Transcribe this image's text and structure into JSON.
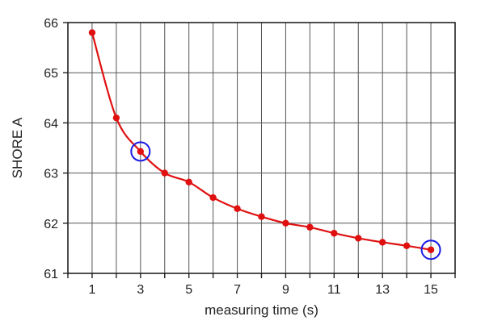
{
  "chart_data": {
    "type": "line",
    "title": "",
    "xlabel": "measuring time (s)",
    "ylabel": "SHORE A",
    "xlim": [
      0,
      16
    ],
    "ylim": [
      61,
      66
    ],
    "x_tick_labels": [
      "1",
      "3",
      "5",
      "7",
      "9",
      "11",
      "13",
      "15"
    ],
    "y_tick_labels": [
      "61",
      "62",
      "63",
      "64",
      "65",
      "66"
    ],
    "grid": true,
    "legend": "none",
    "series": [
      {
        "color": "#e01010",
        "x": [
          1,
          2,
          3,
          4,
          5,
          6,
          7,
          8,
          9,
          10,
          11,
          12,
          13,
          14,
          15
        ],
        "y": [
          65.8,
          64.1,
          63.43,
          63.0,
          62.82,
          62.51,
          62.29,
          62.13,
          62.0,
          61.92,
          61.8,
          61.7,
          61.62,
          61.55,
          61.47
        ]
      }
    ],
    "highlighted_points": [
      {
        "x": 3,
        "y": 63.43,
        "marker": "circle",
        "color": "#1a1ae6"
      },
      {
        "x": 15,
        "y": 61.47,
        "marker": "circle",
        "color": "#1a1ae6"
      }
    ],
    "colors": {
      "line": "#e01010",
      "grid": "#555555",
      "axis": "#222222",
      "highlight": "#1a1ae6"
    }
  }
}
